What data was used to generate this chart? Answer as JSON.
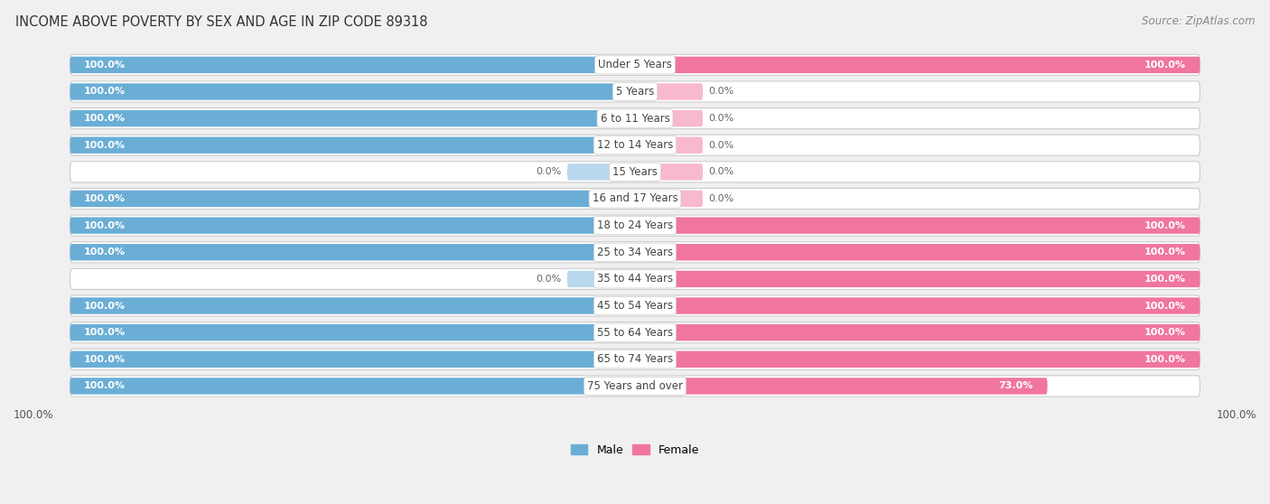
{
  "title": "INCOME ABOVE POVERTY BY SEX AND AGE IN ZIP CODE 89318",
  "source": "Source: ZipAtlas.com",
  "categories": [
    "Under 5 Years",
    "5 Years",
    "6 to 11 Years",
    "12 to 14 Years",
    "15 Years",
    "16 and 17 Years",
    "18 to 24 Years",
    "25 to 34 Years",
    "35 to 44 Years",
    "45 to 54 Years",
    "55 to 64 Years",
    "65 to 74 Years",
    "75 Years and over"
  ],
  "male_values": [
    100.0,
    100.0,
    100.0,
    100.0,
    0.0,
    100.0,
    100.0,
    100.0,
    0.0,
    100.0,
    100.0,
    100.0,
    100.0
  ],
  "female_values": [
    100.0,
    0.0,
    0.0,
    0.0,
    0.0,
    0.0,
    100.0,
    100.0,
    100.0,
    100.0,
    100.0,
    100.0,
    73.0
  ],
  "male_color": "#6aaed6",
  "female_color": "#f075a0",
  "male_light_color": "#b8d8ed",
  "female_light_color": "#f8b8cf",
  "background_color": "#f0f0f0",
  "bar_bg_color": "#e8e8e8",
  "row_bg_color": "#ffffff",
  "title_fontsize": 10.5,
  "source_fontsize": 8.5,
  "label_fontsize": 8.5,
  "value_fontsize": 8.0,
  "axis_label_fontsize": 8.5,
  "legend_fontsize": 9.0
}
